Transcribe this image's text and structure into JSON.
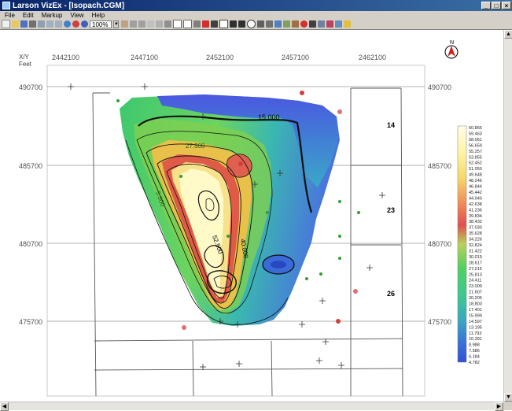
{
  "window": {
    "title": "Larson VizEx - [Isopach.CGM]",
    "min": "_",
    "max": "□",
    "close": "×"
  },
  "menu": [
    "File",
    "Edit",
    "Markup",
    "View",
    "Help"
  ],
  "toolbar": {
    "zoom": "100%"
  },
  "axes": {
    "corner_label_1": "X/Y",
    "corner_label_2": "Feet",
    "x_ticks": [
      "2442100",
      "2447100",
      "2452100",
      "2457100",
      "2462100"
    ],
    "y_ticks": [
      "490700",
      "485700",
      "480700",
      "475700"
    ],
    "y_ticks_right": [
      "490700",
      "485700",
      "480700",
      "475700"
    ]
  },
  "north": "N",
  "sections": [
    "14",
    "23",
    "26"
  ],
  "contour_labels": [
    "15.000",
    "27.500",
    "52.500",
    "40.000",
    "5.000"
  ],
  "legend": [
    "60.865",
    "59.463",
    "58.061",
    "56.659",
    "55.257",
    "53.855",
    "52.452",
    "51.050",
    "49.648",
    "48.246",
    "46.844",
    "45.442",
    "44.040",
    "42.638",
    "41.236",
    "39.834",
    "38.432",
    "37.030",
    "35.628",
    "34.226",
    "32.824",
    "31.422",
    "30.019",
    "28.617",
    "27.215",
    "25.813",
    "24.411",
    "23.009",
    "21.607",
    "20.205",
    "18.803",
    "17.401",
    "15.999",
    "14.597",
    "13.195",
    "11.793",
    "10.391",
    "8.988",
    "7.586",
    "6.184",
    "4.782"
  ],
  "colors": {
    "title_start": "#0a246a",
    "title_end": "#3a6ea5",
    "high": "#ffffe0",
    "mid_red": "#e05050",
    "mid_green": "#3cc870",
    "low_blue": "#3050d8"
  }
}
